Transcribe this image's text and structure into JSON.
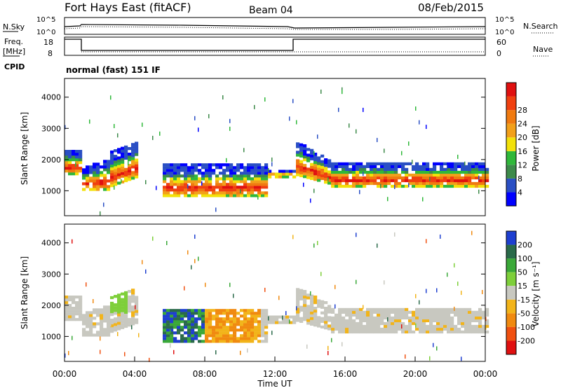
{
  "header": {
    "title": "Fort Hays East (fitACF)",
    "beam": "Beam 04",
    "date": "08/Feb/2015"
  },
  "status_panels": {
    "nsky_label": "N.Sky",
    "nsearch_label": "N.Search",
    "noise_ticks": [
      "10^5",
      "10^0"
    ],
    "freq_label": "Freq.",
    "freq_unit": "[MHz]",
    "freq_ticks": [
      18,
      8
    ],
    "nave_label": "Nave",
    "nave_ticks": [
      60,
      0
    ],
    "cpid_label": "CPID",
    "cpid_text": "normal (fast) 151 IF"
  },
  "chart_data": [
    {
      "type": "heatmap",
      "name": "power",
      "ylabel": "Slant Range [km]",
      "yticks": [
        1000,
        2000,
        3000,
        4000
      ],
      "ylim": [
        200,
        4600
      ],
      "xlim": [
        0,
        24
      ],
      "colorbar_label": "Power [dB]",
      "colorbar_ticks": [
        4,
        8,
        12,
        16,
        20,
        24,
        28
      ],
      "colors": [
        "#0000ff",
        "#2a4fc4",
        "#3d8a4a",
        "#2fb83a",
        "#f2e10a",
        "#f2a01a",
        "#f07a10",
        "#f04010",
        "#e01010"
      ]
    },
    {
      "type": "heatmap",
      "name": "velocity",
      "ylabel": "Slant Range [km]",
      "yticks": [
        1000,
        2000,
        3000,
        4000
      ],
      "ylim": [
        200,
        4600
      ],
      "xlim": [
        0,
        24
      ],
      "xlabel": "Time UT",
      "xticks": [
        "00:00",
        "04:00",
        "08:00",
        "12:00",
        "16:00",
        "20:00",
        "00:00"
      ],
      "colorbar_label": "Velocity [m s⁻¹]",
      "colorbar_ticks": [
        200,
        100,
        50,
        15,
        -15,
        -50,
        -100,
        -200
      ],
      "colors": [
        "#1e3fd0",
        "#2a6a4a",
        "#3aa838",
        "#7ecf3a",
        "#c8c8c0",
        "#f2b41a",
        "#f08a10",
        "#f05010",
        "#e01010"
      ]
    }
  ]
}
